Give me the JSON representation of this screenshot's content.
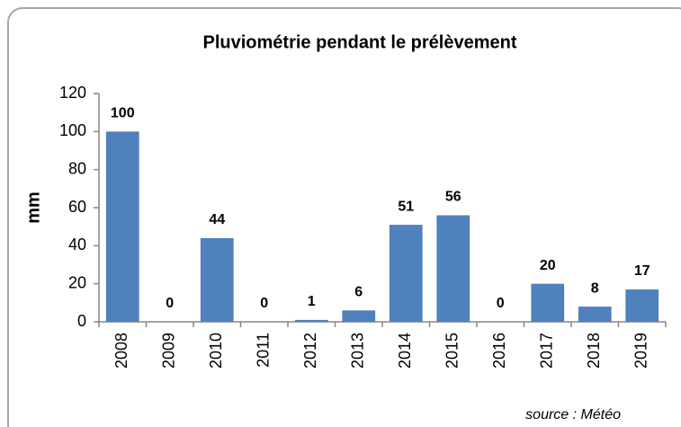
{
  "chart_data": {
    "type": "bar",
    "title": "Pluviométrie pendant le prélèvement",
    "ylabel": "mm",
    "categories": [
      "2008",
      "2009",
      "2010",
      "2011",
      "2012",
      "2013",
      "2014",
      "2015",
      "2016",
      "2017",
      "2018",
      "2019"
    ],
    "values": [
      100,
      0,
      44,
      0,
      1,
      6,
      51,
      56,
      0,
      20,
      8,
      17
    ],
    "color": "#4f81bd",
    "ylim": [
      0,
      120
    ],
    "yticks": [
      0,
      20,
      40,
      60,
      80,
      100,
      120
    ],
    "grid": false,
    "annotation": "source : Météo"
  }
}
